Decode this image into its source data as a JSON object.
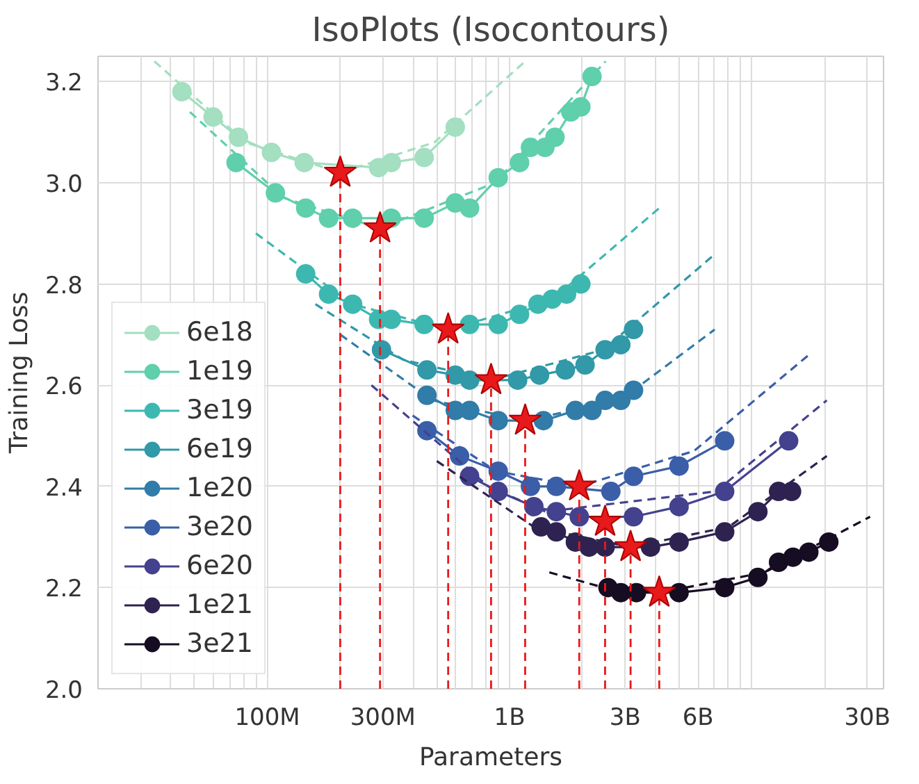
{
  "chart_data": {
    "type": "line",
    "title": "IsoPlots (Isocontours)",
    "xlabel": "Parameters",
    "ylabel": "Training Loss",
    "log": "x",
    "grid": true,
    "legend": "bottom left",
    "marker": "circle",
    "line_style": "solid",
    "xlim": [
      20000000.0,
      35000000000.0
    ],
    "ylim": [
      2.0,
      3.25
    ],
    "xticks": [
      {
        "value": 100000000.0,
        "label": "100M"
      },
      {
        "value": 300000000.0,
        "label": "300M"
      },
      {
        "value": 1000000000.0,
        "label": "1B"
      },
      {
        "value": 3000000000.0,
        "label": "3B"
      },
      {
        "value": 6000000000.0,
        "label": "6B"
      },
      {
        "value": 30000000000.0,
        "label": "30B"
      }
    ],
    "yticks": [
      {
        "value": 2.0,
        "label": "2.0"
      },
      2.2,
      2.4,
      2.6,
      2.8,
      {
        "value": 3.0,
        "label": "3.0"
      },
      3.2
    ],
    "series": [
      {
        "name": "6e18",
        "color": "#a3dfc0",
        "x": [
          44400000.0,
          59700000.0,
          76000000.0,
          104000000.0,
          142000000.0,
          288000000.0,
          325000000.0,
          444000000.0,
          597000000.0
        ],
        "values": [
          3.18,
          3.13,
          3.09,
          3.06,
          3.04,
          3.03,
          3.04,
          3.05,
          3.11
        ]
      },
      {
        "name": "1e19",
        "color": "#5fcfac",
        "x": [
          74300000.0,
          108000000.0,
          144000000.0,
          179000000.0,
          225000000.0,
          325000000.0,
          444000000.0,
          597000000.0,
          684000000.0,
          898000000.0,
          1100000000.0,
          1220000000.0,
          1400000000.0,
          1540000000.0,
          1790000000.0,
          1970000000.0,
          2190000000.0
        ],
        "values": [
          3.04,
          2.98,
          2.95,
          2.93,
          2.93,
          2.93,
          2.93,
          2.96,
          2.95,
          3.01,
          3.04,
          3.07,
          3.07,
          3.09,
          3.14,
          3.15,
          3.21
        ]
      },
      {
        "name": "3e19",
        "color": "#3db8b0",
        "x": [
          144000000.0,
          179000000.0,
          225000000.0,
          288000000.0,
          325000000.0,
          444000000.0,
          684000000.0,
          898000000.0,
          1100000000.0,
          1310000000.0,
          1500000000.0,
          1720000000.0,
          1970000000.0
        ],
        "values": [
          2.82,
          2.78,
          2.76,
          2.73,
          2.73,
          2.72,
          2.72,
          2.72,
          2.74,
          2.76,
          2.77,
          2.78,
          2.8
        ]
      },
      {
        "name": "6e19",
        "color": "#3199a8",
        "x": [
          296000000.0,
          456000000.0,
          597000000.0,
          684000000.0,
          1080000000.0,
          1330000000.0,
          1700000000.0,
          2050000000.0,
          2480000000.0,
          2880000000.0,
          3250000000.0
        ],
        "values": [
          2.67,
          2.63,
          2.62,
          2.61,
          2.61,
          2.62,
          2.63,
          2.64,
          2.67,
          2.68,
          2.71
        ]
      },
      {
        "name": "1e20",
        "color": "#317ca8",
        "x": [
          456000000.0,
          597000000.0,
          684000000.0,
          898000000.0,
          1380000000.0,
          1870000000.0,
          2190000000.0,
          2480000000.0,
          2880000000.0,
          3250000000.0
        ],
        "values": [
          2.58,
          2.55,
          2.55,
          2.53,
          2.53,
          2.55,
          2.55,
          2.57,
          2.57,
          2.59
        ]
      },
      {
        "name": "3e20",
        "color": "#3a5ea8",
        "x": [
          456000000.0,
          622000000.0,
          898000000.0,
          1220000000.0,
          1560000000.0,
          2620000000.0,
          3250000000.0,
          5010000000.0,
          7730000000.0
        ],
        "values": [
          2.51,
          2.46,
          2.43,
          2.4,
          2.4,
          2.39,
          2.42,
          2.44,
          2.49
        ]
      },
      {
        "name": "6e20",
        "color": "#44428e",
        "x": [
          684000000.0,
          898000000.0,
          1260000000.0,
          1560000000.0,
          1940000000.0,
          3250000000.0,
          5010000000.0,
          7730000000.0,
          14200000000.0
        ],
        "values": [
          2.42,
          2.39,
          2.36,
          2.35,
          2.34,
          2.34,
          2.36,
          2.39,
          2.49
        ]
      },
      {
        "name": "1e21",
        "color": "#2e2350",
        "x": [
          1350000000.0,
          1560000000.0,
          1870000000.0,
          2130000000.0,
          2480000000.0,
          3820000000.0,
          5010000000.0,
          7730000000.0,
          10600000000.0,
          12900000000.0,
          14600000000.0
        ],
        "values": [
          2.32,
          2.31,
          2.29,
          2.28,
          2.28,
          2.28,
          2.29,
          2.31,
          2.35,
          2.39,
          2.39
        ]
      },
      {
        "name": "3e21",
        "color": "#160d22",
        "x": [
          2550000000.0,
          2880000000.0,
          3340000000.0,
          5010000000.0,
          7730000000.0,
          10600000000.0,
          12900000000.0,
          14800000000.0,
          17200000000.0,
          20800000000.0
        ],
        "values": [
          2.2,
          2.19,
          2.19,
          2.19,
          2.2,
          2.22,
          2.25,
          2.26,
          2.27,
          2.29
        ]
      },
      {
        "color": "#a3dfc0",
        "marker": "none",
        "line_style": "dashed",
        "x": [
          34200000.0,
          81300000.0,
          200000000.0,
          490000000.0,
          1160000000.0
        ],
        "values": [
          3.24,
          3.08,
          3.02,
          3.08,
          3.24
        ]
      },
      {
        "color": "#5fcfac",
        "marker": "none",
        "line_style": "dashed",
        "x": [
          47900000.0,
          117000000.0,
          292000000.0,
          871000000.0,
          2490000000.0
        ],
        "values": [
          3.14,
          2.97,
          2.91,
          3.0,
          3.24
        ]
      },
      {
        "color": "#3db8b0",
        "marker": "none",
        "line_style": "dashed",
        "x": [
          89700000.0,
          224000000.0,
          558000000.0,
          1510000000.0,
          4150000000.0
        ],
        "values": [
          2.9,
          2.76,
          2.71,
          2.77,
          2.95
        ]
      },
      {
        "color": "#3199a8",
        "marker": "none",
        "line_style": "dashed",
        "x": [
          158000000.0,
          365000000.0,
          839000000.0,
          2440000000.0,
          7080000000.0
        ],
        "values": [
          2.76,
          2.65,
          2.61,
          2.67,
          2.86
        ]
      },
      {
        "color": "#317ca8",
        "marker": "none",
        "line_style": "dashed",
        "x": [
          200000000.0,
          482000000.0,
          1160000000.0,
          2860000000.0,
          7030000000.0
        ],
        "values": [
          2.7,
          2.57,
          2.53,
          2.57,
          2.71
        ]
      },
      {
        "color": "#3a5ea8",
        "marker": "none",
        "line_style": "dashed",
        "x": [
          398000000.0,
          879000000.0,
          1940000000.0,
          5780000000.0,
          17200000000.0
        ],
        "values": [
          2.54,
          2.43,
          2.4,
          2.47,
          2.66
        ]
      },
      {
        "color": "#44428e",
        "marker": "none",
        "line_style": "dashed",
        "x": [
          269000000.0,
          817000000.0,
          1410000000.0,
          7110000000.0,
          20400000000.0
        ],
        "values": [
          2.6,
          2.4,
          2.35,
          2.39,
          2.57
        ]
      },
      {
        "color": "#2e2350",
        "marker": "none",
        "line_style": "dashed",
        "x": [
          501000000.0,
          1260000000.0,
          3160000000.0,
          8040000000.0,
          20400000000.0
        ],
        "values": [
          2.45,
          2.32,
          2.28,
          2.32,
          2.46
        ]
      },
      {
        "color": "#160d22",
        "marker": "none",
        "line_style": "dashed",
        "x": [
          1460000000.0,
          2450000000.0,
          4150000000.0,
          11300000000.0,
          30800000000.0
        ],
        "values": [
          2.23,
          2.2,
          2.19,
          2.23,
          2.34
        ]
      },
      {
        "type": "lollipop",
        "color": "#e8191b",
        "marker": "star",
        "line_style": "dashed",
        "x": [
          200000000.0,
          292000000.0,
          558000000.0,
          839000000.0,
          1160000000.0,
          1940000000.0,
          2480000000.0,
          3160000000.0,
          4150000000.0
        ],
        "values": [
          3.02,
          2.91,
          2.71,
          2.61,
          2.53,
          2.4,
          2.33,
          2.28,
          2.19
        ]
      }
    ]
  }
}
